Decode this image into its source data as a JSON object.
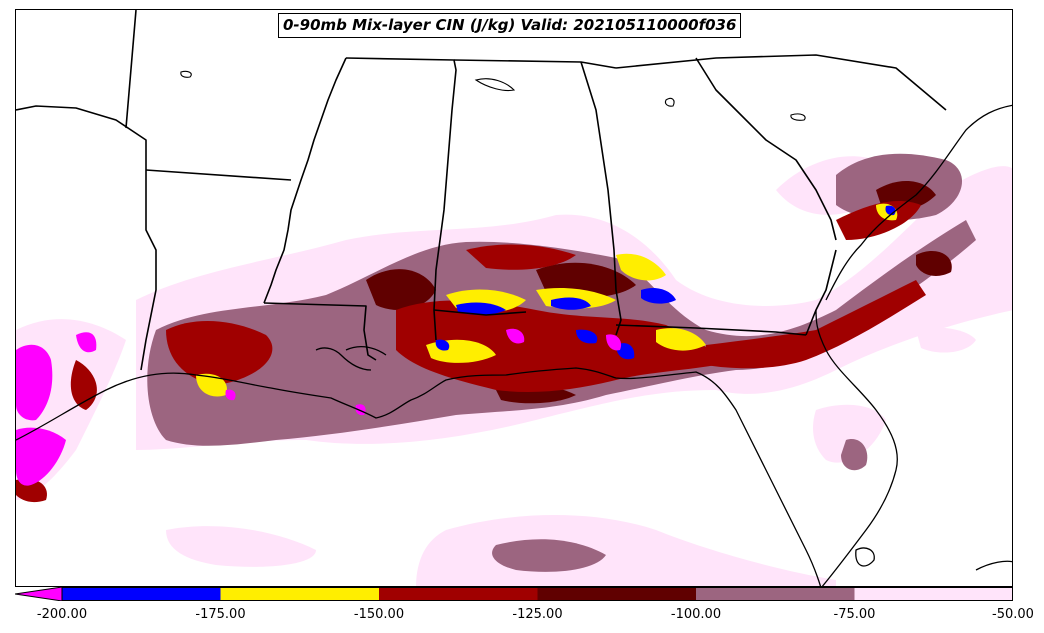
{
  "title": "0-90mb Mix-layer CIN (J/kg) Valid: 202105110000f036",
  "colorbar": {
    "extend": "min",
    "ticks": [
      "-200.00",
      "-175.00",
      "-150.00",
      "-125.00",
      "-100.00",
      "-75.00",
      "-50.00"
    ],
    "bins": [
      {
        "range": "< -200",
        "color": "#ff00ff"
      },
      {
        "range": "-200 to -175",
        "color": "#0000ff"
      },
      {
        "range": "-175 to -150",
        "color": "#ffee00"
      },
      {
        "range": "-150 to -125",
        "color": "#a00000"
      },
      {
        "range": "-125 to -100",
        "color": "#600000"
      },
      {
        "range": "-100 to -75",
        "color": "#9c6580"
      },
      {
        "range": "-75 to -50",
        "color": "#ffe4fa"
      }
    ]
  },
  "map": {
    "region": "US Gulf Coast and Southeast",
    "field": "0-90mb Mix-layer CIN",
    "units": "J/kg",
    "boundaries": [
      "state lines",
      "coastline"
    ],
    "colors": {
      "magenta": "#ff00ff",
      "blue": "#0000ff",
      "yellow": "#ffee00",
      "darkred": "#a00000",
      "maroon": "#600000",
      "mauve": "#9c6580",
      "pink": "#ffe4fa"
    }
  }
}
